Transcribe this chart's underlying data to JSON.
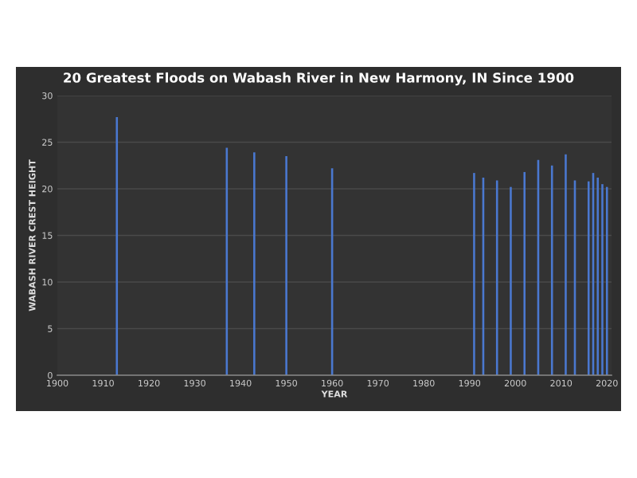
{
  "chart_data": {
    "type": "bar",
    "title": "20 Greatest Floods on Wabash River in New Harmony, IN Since 1900",
    "xlabel": "YEAR",
    "ylabel": "WABASH RIVER CREST HEIGHT",
    "x": [
      1913,
      1937,
      1943,
      1950,
      1960,
      1991,
      1993,
      1996,
      1999,
      2002,
      2005,
      2008,
      2011,
      2013,
      2016,
      2017,
      2018,
      2019,
      2020
    ],
    "values": [
      27.7,
      24.4,
      23.9,
      23.5,
      22.2,
      21.7,
      21.2,
      20.9,
      20.2,
      21.8,
      23.1,
      22.5,
      23.7,
      20.9,
      20.8,
      21.7,
      21.2,
      20.5,
      20.2
    ],
    "color": "#4a78d0",
    "xlim": [
      1900,
      2021
    ],
    "xticks": [
      1900,
      1910,
      1920,
      1930,
      1940,
      1950,
      1960,
      1970,
      1980,
      1990,
      2000,
      2010,
      2020
    ],
    "ylim": [
      0,
      30
    ],
    "yticks": [
      0,
      5,
      10,
      15,
      20,
      25,
      30
    ],
    "grid": "y"
  }
}
